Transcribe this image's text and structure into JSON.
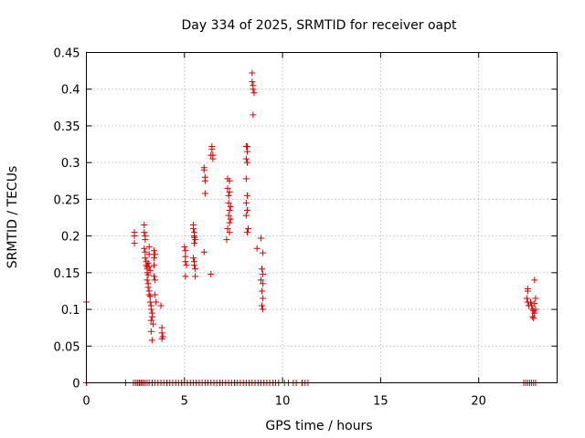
{
  "chart_data": {
    "type": "scatter",
    "title": "Day 334 of 2025, SRMTID for receiver oapt",
    "xlabel": "GPS time / hours",
    "ylabel": "SRMTID / TECUs",
    "xlim": [
      0,
      24
    ],
    "ylim": [
      0,
      0.45
    ],
    "xticks": [
      0,
      5,
      10,
      15,
      20
    ],
    "xtick_labels": [
      "0",
      "5",
      "10",
      "15",
      "20"
    ],
    "yticks": [
      0,
      0.05,
      0.1,
      0.15,
      0.2,
      0.25,
      0.3,
      0.35,
      0.4,
      0.45
    ],
    "ytick_labels": [
      "0",
      "0.05",
      "0.1",
      "0.15",
      "0.2",
      "0.25",
      "0.3",
      "0.35",
      "0.4",
      "0.45"
    ],
    "grid": true,
    "marker": "plus",
    "color": "#d40000",
    "series": [
      {
        "name": "SRMTID",
        "points": [
          [
            0.0,
            0.11
          ],
          [
            0.0,
            0.0
          ],
          [
            2.0,
            0.0
          ],
          [
            2.4,
            0.0
          ],
          [
            2.5,
            0.0
          ],
          [
            2.6,
            0.0
          ],
          [
            2.7,
            0.0
          ],
          [
            2.8,
            0.0
          ],
          [
            2.9,
            0.0
          ],
          [
            3.0,
            0.0
          ],
          [
            3.1,
            0.0
          ],
          [
            3.2,
            0.0
          ],
          [
            3.35,
            0.0
          ],
          [
            3.5,
            0.0
          ],
          [
            3.65,
            0.0
          ],
          [
            3.8,
            0.0
          ],
          [
            3.95,
            0.0
          ],
          [
            4.1,
            0.0
          ],
          [
            4.25,
            0.0
          ],
          [
            4.4,
            0.0
          ],
          [
            4.55,
            0.0
          ],
          [
            4.7,
            0.0
          ],
          [
            4.85,
            0.0
          ],
          [
            5.0,
            0.0
          ],
          [
            5.15,
            0.0
          ],
          [
            5.3,
            0.0
          ],
          [
            5.45,
            0.0
          ],
          [
            5.6,
            0.0
          ],
          [
            5.75,
            0.0
          ],
          [
            5.9,
            0.0
          ],
          [
            6.05,
            0.0
          ],
          [
            6.2,
            0.0
          ],
          [
            6.35,
            0.0
          ],
          [
            6.5,
            0.0
          ],
          [
            6.65,
            0.0
          ],
          [
            6.8,
            0.0
          ],
          [
            6.95,
            0.0
          ],
          [
            7.1,
            0.0
          ],
          [
            7.25,
            0.0
          ],
          [
            7.4,
            0.0
          ],
          [
            7.55,
            0.0
          ],
          [
            7.7,
            0.0
          ],
          [
            7.85,
            0.0
          ],
          [
            8.0,
            0.0
          ],
          [
            8.15,
            0.0
          ],
          [
            8.3,
            0.0
          ],
          [
            8.45,
            0.0
          ],
          [
            8.6,
            0.0
          ],
          [
            8.75,
            0.0
          ],
          [
            8.9,
            0.0
          ],
          [
            9.05,
            0.0
          ],
          [
            9.2,
            0.0
          ],
          [
            9.35,
            0.0
          ],
          [
            9.5,
            0.0
          ],
          [
            9.65,
            0.0
          ],
          [
            9.8,
            0.0
          ],
          [
            10.1,
            0.0
          ],
          [
            10.3,
            0.0
          ],
          [
            10.55,
            0.0
          ],
          [
            10.7,
            0.0
          ],
          [
            11.0,
            0.0
          ],
          [
            11.15,
            0.0
          ],
          [
            11.3,
            0.0
          ],
          [
            2.45,
            0.205
          ],
          [
            2.45,
            0.2
          ],
          [
            2.45,
            0.19
          ],
          [
            2.95,
            0.215
          ],
          [
            2.95,
            0.205
          ],
          [
            3.0,
            0.2
          ],
          [
            3.0,
            0.195
          ],
          [
            2.95,
            0.183
          ],
          [
            3.0,
            0.178
          ],
          [
            3.0,
            0.17
          ],
          [
            3.05,
            0.165
          ],
          [
            3.05,
            0.16
          ],
          [
            3.1,
            0.158
          ],
          [
            3.1,
            0.155
          ],
          [
            3.1,
            0.15
          ],
          [
            3.15,
            0.147
          ],
          [
            3.1,
            0.14
          ],
          [
            3.15,
            0.135
          ],
          [
            3.15,
            0.13
          ],
          [
            3.2,
            0.125
          ],
          [
            3.2,
            0.12
          ],
          [
            3.25,
            0.118
          ],
          [
            3.25,
            0.11
          ],
          [
            3.3,
            0.105
          ],
          [
            3.3,
            0.1
          ],
          [
            3.35,
            0.095
          ],
          [
            3.35,
            0.09
          ],
          [
            3.3,
            0.085
          ],
          [
            3.4,
            0.08
          ],
          [
            3.3,
            0.07
          ],
          [
            3.35,
            0.058
          ],
          [
            3.2,
            0.185
          ],
          [
            3.2,
            0.175
          ],
          [
            3.15,
            0.163
          ],
          [
            3.2,
            0.158
          ],
          [
            3.25,
            0.153
          ],
          [
            3.45,
            0.18
          ],
          [
            3.5,
            0.175
          ],
          [
            3.45,
            0.17
          ],
          [
            3.45,
            0.16
          ],
          [
            3.45,
            0.145
          ],
          [
            3.5,
            0.14
          ],
          [
            3.5,
            0.12
          ],
          [
            3.55,
            0.11
          ],
          [
            3.8,
            0.105
          ],
          [
            3.85,
            0.075
          ],
          [
            3.85,
            0.068
          ],
          [
            3.9,
            0.063
          ],
          [
            3.85,
            0.06
          ],
          [
            5.0,
            0.185
          ],
          [
            5.05,
            0.18
          ],
          [
            5.05,
            0.172
          ],
          [
            5.05,
            0.165
          ],
          [
            5.1,
            0.16
          ],
          [
            5.05,
            0.145
          ],
          [
            5.45,
            0.215
          ],
          [
            5.45,
            0.21
          ],
          [
            5.5,
            0.205
          ],
          [
            5.5,
            0.2
          ],
          [
            5.5,
            0.198
          ],
          [
            5.55,
            0.195
          ],
          [
            5.5,
            0.19
          ],
          [
            5.45,
            0.17
          ],
          [
            5.5,
            0.165
          ],
          [
            5.5,
            0.16
          ],
          [
            5.55,
            0.155
          ],
          [
            5.55,
            0.145
          ],
          [
            6.0,
            0.293
          ],
          [
            6.0,
            0.29
          ],
          [
            6.05,
            0.28
          ],
          [
            6.05,
            0.275
          ],
          [
            6.05,
            0.258
          ],
          [
            6.0,
            0.178
          ],
          [
            6.35,
            0.148
          ],
          [
            6.4,
            0.322
          ],
          [
            6.4,
            0.318
          ],
          [
            6.45,
            0.31
          ],
          [
            6.45,
            0.305
          ],
          [
            6.35,
            0.31
          ],
          [
            7.2,
            0.278
          ],
          [
            7.3,
            0.275
          ],
          [
            7.2,
            0.265
          ],
          [
            7.3,
            0.26
          ],
          [
            7.25,
            0.255
          ],
          [
            7.25,
            0.245
          ],
          [
            7.35,
            0.24
          ],
          [
            7.3,
            0.235
          ],
          [
            7.25,
            0.228
          ],
          [
            7.35,
            0.223
          ],
          [
            7.3,
            0.218
          ],
          [
            7.2,
            0.21
          ],
          [
            7.3,
            0.205
          ],
          [
            7.15,
            0.195
          ],
          [
            8.15,
            0.322
          ],
          [
            8.2,
            0.322
          ],
          [
            8.2,
            0.315
          ],
          [
            8.15,
            0.305
          ],
          [
            8.2,
            0.3
          ],
          [
            8.15,
            0.278
          ],
          [
            8.2,
            0.255
          ],
          [
            8.15,
            0.245
          ],
          [
            8.2,
            0.235
          ],
          [
            8.15,
            0.228
          ],
          [
            8.25,
            0.21
          ],
          [
            8.2,
            0.205
          ],
          [
            8.45,
            0.422
          ],
          [
            8.45,
            0.41
          ],
          [
            8.5,
            0.405
          ],
          [
            8.5,
            0.4
          ],
          [
            8.55,
            0.395
          ],
          [
            8.5,
            0.365
          ],
          [
            8.7,
            0.183
          ],
          [
            8.9,
            0.197
          ],
          [
            9.0,
            0.177
          ],
          [
            8.95,
            0.155
          ],
          [
            9.0,
            0.148
          ],
          [
            8.9,
            0.14
          ],
          [
            9.0,
            0.135
          ],
          [
            8.95,
            0.125
          ],
          [
            9.0,
            0.115
          ],
          [
            8.95,
            0.105
          ],
          [
            9.0,
            0.1
          ],
          [
            22.3,
            0.0
          ],
          [
            22.4,
            0.0
          ],
          [
            22.5,
            0.0
          ],
          [
            22.6,
            0.0
          ],
          [
            22.7,
            0.0
          ],
          [
            22.8,
            0.0
          ],
          [
            22.9,
            0.0
          ],
          [
            22.5,
            0.128
          ],
          [
            22.5,
            0.125
          ],
          [
            22.45,
            0.115
          ],
          [
            22.5,
            0.11
          ],
          [
            22.55,
            0.105
          ],
          [
            22.65,
            0.11
          ],
          [
            22.7,
            0.105
          ],
          [
            22.75,
            0.1
          ],
          [
            22.8,
            0.098
          ],
          [
            22.85,
            0.095
          ],
          [
            22.75,
            0.09
          ],
          [
            22.9,
            0.1
          ],
          [
            22.85,
            0.108
          ],
          [
            22.9,
            0.115
          ],
          [
            22.85,
            0.14
          ],
          [
            22.8,
            0.088
          ]
        ]
      }
    ]
  }
}
